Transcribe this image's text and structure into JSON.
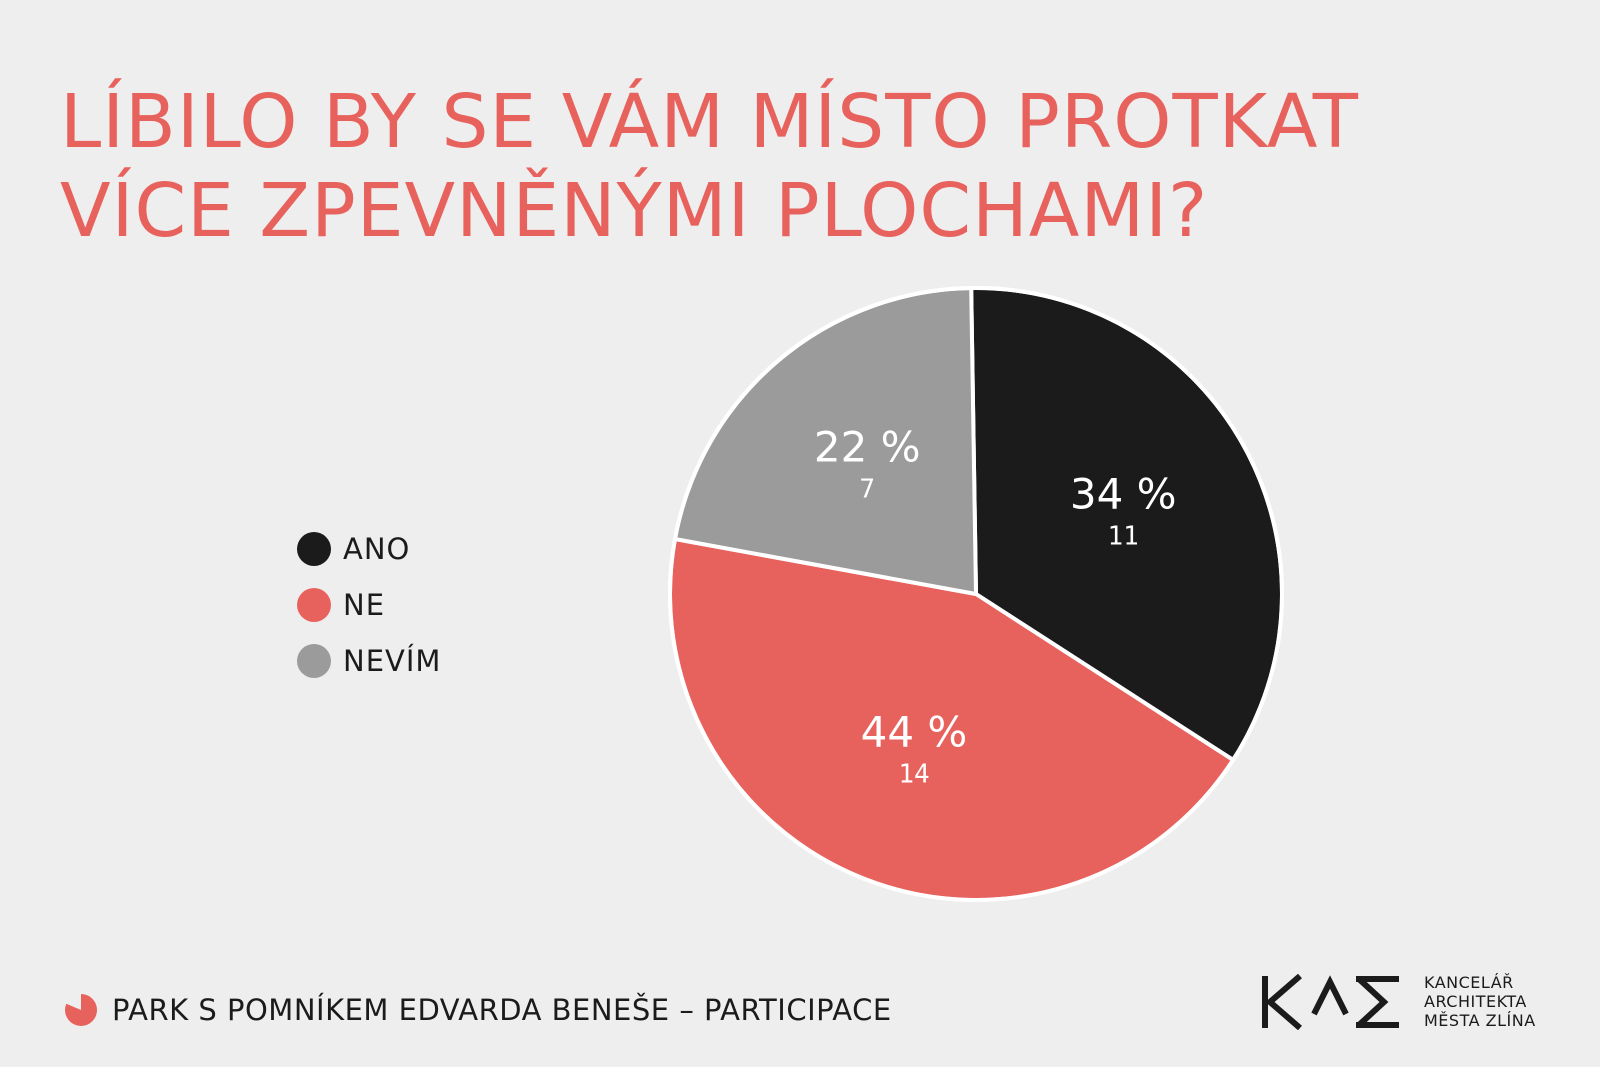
{
  "title_lines": [
    "LÍBILO BY SE VÁM MÍSTO PROTKAT",
    "VÍCE ZPEVNĚNÝMI PLOCHAMI?"
  ],
  "colors": {
    "accent": "#e8625d",
    "ano": "#1b1b1b",
    "ne": "#e8625d",
    "nevim": "#9b9b9b",
    "background": "#efeeee"
  },
  "legend": [
    {
      "label": "ANO",
      "color": "#1b1b1b"
    },
    {
      "label": "NE",
      "color": "#e8625d"
    },
    {
      "label": "NEVÍM",
      "color": "#9b9b9b"
    }
  ],
  "footer": {
    "text": "PARK S POMNÍKEM EDVARDA BENEŠE – PARTICIPACE"
  },
  "logo": {
    "mark_name": "kam-logo",
    "lines": [
      "KANCELÁŘ",
      "ARCHITEKTA",
      "MĚSTA ZLÍNA"
    ]
  },
  "chart_data": {
    "type": "pie",
    "title": "LÍBILO BY SE VÁM MÍSTO PROTKAT VÍCE ZPEVNĚNÝMI PLOCHAMI?",
    "categories": [
      "ANO",
      "NE",
      "NEVÍM"
    ],
    "values": [
      11,
      14,
      7
    ],
    "percent_labels": [
      "34 %",
      "44 %",
      "22 %"
    ],
    "count_labels": [
      "11",
      "14",
      "7"
    ],
    "colors": [
      "#1b1b1b",
      "#e8625d",
      "#9b9b9b"
    ],
    "legend_position": "left"
  }
}
